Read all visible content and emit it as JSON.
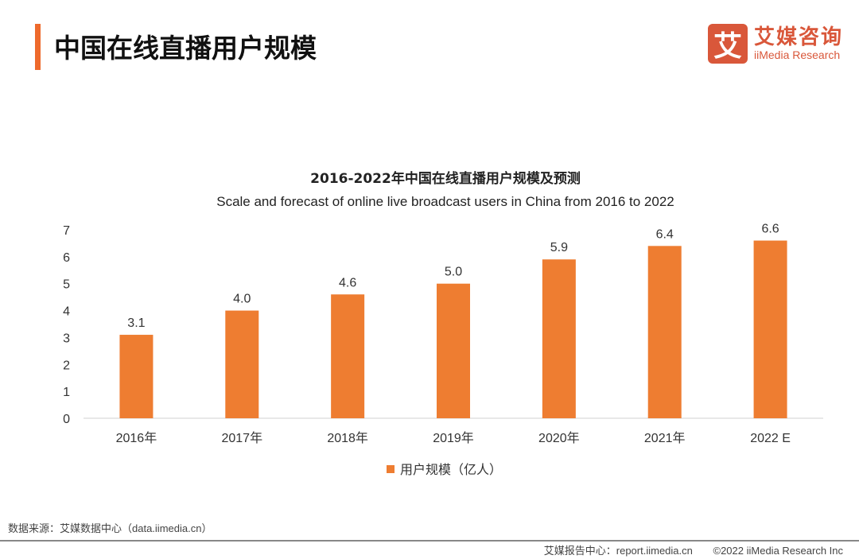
{
  "header": {
    "title": "中国在线直播用户规模",
    "accent_color": "#ee6a2c"
  },
  "logo": {
    "mark": "艾",
    "cn": "艾媒咨询",
    "en": "iiMedia Research",
    "color": "#d9573a"
  },
  "chart_data": {
    "type": "bar",
    "title": "2016-2022年中国在线直播用户规模及预测",
    "subtitle": "Scale and forecast of online live broadcast users in China from 2016 to 2022",
    "categories": [
      "2016年",
      "2017年",
      "2018年",
      "2019年",
      "2020年",
      "2021年",
      "2022 E"
    ],
    "series": [
      {
        "name": "用户规模（亿人）",
        "values": [
          3.1,
          4.0,
          4.6,
          5.0,
          5.9,
          6.4,
          6.6
        ],
        "labels": [
          "3.1",
          "4.0",
          "4.6",
          "5.0",
          "5.9",
          "6.4",
          "6.6"
        ],
        "color": "#ee7d31"
      }
    ],
    "ylim": [
      0,
      7
    ],
    "yticks": [
      "0",
      "1",
      "2",
      "3",
      "4",
      "5",
      "6",
      "7"
    ],
    "grid": false,
    "legend": "bottom"
  },
  "footer": {
    "source": "数据来源：艾媒数据中心（data.iimedia.cn）",
    "report": "艾媒报告中心：report.iimedia.cn",
    "copyright": "©2022  iiMedia Research  Inc"
  }
}
